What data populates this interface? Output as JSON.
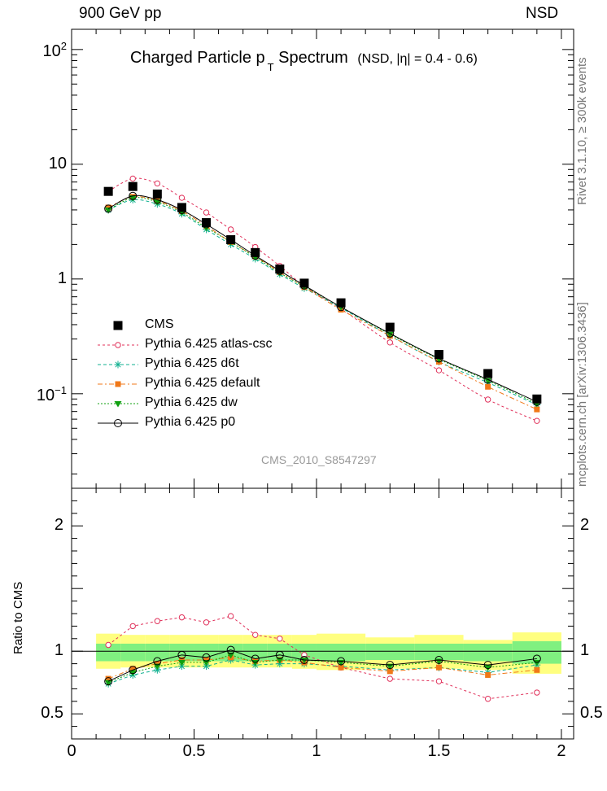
{
  "header": {
    "left": "900 GeV pp",
    "right": "NSD"
  },
  "title": {
    "main": "Charged Particle p",
    "sub": "T",
    "rest": " Spectrum",
    "cond": "(NSD, |η| = 0.4 - 0.6)"
  },
  "side_labels": {
    "rivet": "Rivet 3.1.10, ≥ 300k events",
    "mcplots": "mcplots.cern.ch [arXiv:1306.3436]"
  },
  "watermark": "CMS_2010_S8547297",
  "ratio_ylabel": "Ratio to CMS",
  "colors": {
    "cms": "#000000",
    "atlas_csc": "#e0305a",
    "d6t": "#10b090",
    "default": "#f07818",
    "dw": "#10a010",
    "p0": "#000000",
    "band_outer": "#ffff80",
    "band_inner": "#80f080"
  },
  "chart_data": [
    {
      "type": "scatter",
      "panel": "main",
      "yscale": "log",
      "xlim": [
        0,
        2.05
      ],
      "ylim": [
        0.015,
        150
      ],
      "grid": false,
      "legend_position": "bottom-left",
      "y_ticks": [
        {
          "value": 0.1,
          "base": "10",
          "exp": "−1"
        },
        {
          "value": 1,
          "base": "1",
          "exp": ""
        },
        {
          "value": 10,
          "base": "10",
          "exp": ""
        },
        {
          "value": 100,
          "base": "10",
          "exp": "2"
        }
      ],
      "x": [
        0.15,
        0.25,
        0.35,
        0.45,
        0.55,
        0.65,
        0.75,
        0.85,
        0.95,
        1.1,
        1.3,
        1.5,
        1.7,
        1.9
      ],
      "series": [
        {
          "name": "CMS",
          "style": "data",
          "values": [
            5.8,
            6.4,
            5.5,
            4.2,
            3.1,
            2.2,
            1.7,
            1.22,
            0.92,
            0.62,
            0.38,
            0.22,
            0.15,
            0.09
          ]
        },
        {
          "name": "Pythia 6.425 atlas-csc",
          "style": "atlas_csc",
          "values": [
            5.8,
            7.5,
            6.8,
            5.1,
            3.8,
            2.7,
            1.9,
            1.3,
            0.87,
            0.55,
            0.28,
            0.16,
            0.089,
            0.058
          ]
        },
        {
          "name": "Pythia 6.425 d6t",
          "style": "d6t",
          "values": [
            4.0,
            4.9,
            4.5,
            3.7,
            2.7,
            2.0,
            1.5,
            1.1,
            0.83,
            0.56,
            0.32,
            0.19,
            0.125,
            0.08
          ]
        },
        {
          "name": "Pythia 6.425 default",
          "style": "default",
          "values": [
            4.2,
            5.2,
            4.8,
            3.9,
            2.9,
            2.1,
            1.57,
            1.15,
            0.85,
            0.54,
            0.32,
            0.19,
            0.115,
            0.073
          ]
        },
        {
          "name": "Pythia 6.425 dw",
          "style": "dw",
          "values": [
            4.0,
            5.1,
            4.7,
            3.8,
            2.8,
            2.1,
            1.55,
            1.13,
            0.86,
            0.57,
            0.33,
            0.2,
            0.13,
            0.082
          ]
        },
        {
          "name": "Pythia 6.425 p0",
          "style": "p0",
          "values": [
            4.1,
            5.3,
            4.9,
            4.0,
            3.0,
            2.2,
            1.6,
            1.18,
            0.88,
            0.57,
            0.335,
            0.203,
            0.133,
            0.085
          ]
        }
      ]
    },
    {
      "type": "scatter",
      "panel": "ratio",
      "yscale": "linear",
      "xlim": [
        0,
        2.05
      ],
      "ylim": [
        0.3,
        2.3
      ],
      "grid": false,
      "xlabel": "",
      "ylabel": "Ratio to CMS",
      "x_ticks": [
        {
          "value": 0,
          "label": "0"
        },
        {
          "value": 0.5,
          "label": "0.5"
        },
        {
          "value": 1,
          "label": "1"
        },
        {
          "value": 1.5,
          "label": "1.5"
        },
        {
          "value": 2,
          "label": "2"
        }
      ],
      "y_ticks": [
        {
          "value": 0.5,
          "label": "0.5"
        },
        {
          "value": 1,
          "label": "1"
        },
        {
          "value": 2,
          "label": "2"
        }
      ],
      "bins": [
        [
          0.1,
          0.2
        ],
        [
          0.2,
          0.3
        ],
        [
          0.3,
          0.4
        ],
        [
          0.4,
          0.5
        ],
        [
          0.5,
          0.6
        ],
        [
          0.6,
          0.7
        ],
        [
          0.7,
          0.8
        ],
        [
          0.8,
          0.9
        ],
        [
          0.9,
          1.0
        ],
        [
          1.0,
          1.2
        ],
        [
          1.2,
          1.4
        ],
        [
          1.4,
          1.6
        ],
        [
          1.6,
          1.8
        ],
        [
          1.8,
          2.0
        ]
      ],
      "band_outer": [
        [
          0.86,
          1.14
        ],
        [
          0.87,
          1.13
        ],
        [
          0.87,
          1.13
        ],
        [
          0.87,
          1.13
        ],
        [
          0.87,
          1.13
        ],
        [
          0.87,
          1.13
        ],
        [
          0.87,
          1.13
        ],
        [
          0.87,
          1.13
        ],
        [
          0.86,
          1.13
        ],
        [
          0.85,
          1.14
        ],
        [
          0.86,
          1.11
        ],
        [
          0.86,
          1.13
        ],
        [
          0.85,
          1.09
        ],
        [
          0.82,
          1.15
        ]
      ],
      "band_inner": [
        [
          0.92,
          1.06
        ],
        [
          0.92,
          1.06
        ],
        [
          0.92,
          1.06
        ],
        [
          0.92,
          1.06
        ],
        [
          0.92,
          1.06
        ],
        [
          0.92,
          1.06
        ],
        [
          0.92,
          1.06
        ],
        [
          0.92,
          1.06
        ],
        [
          0.92,
          1.06
        ],
        [
          0.92,
          1.06
        ],
        [
          0.93,
          1.06
        ],
        [
          0.93,
          1.06
        ],
        [
          0.92,
          1.06
        ],
        [
          0.9,
          1.08
        ]
      ],
      "x": [
        0.15,
        0.25,
        0.35,
        0.45,
        0.55,
        0.65,
        0.75,
        0.85,
        0.95,
        1.1,
        1.3,
        1.5,
        1.7,
        1.9
      ],
      "series": [
        {
          "name": "Pythia 6.425 atlas-csc",
          "style": "atlas_csc",
          "values": [
            1.05,
            1.2,
            1.24,
            1.27,
            1.23,
            1.28,
            1.13,
            1.1,
            0.97,
            0.87,
            0.78,
            0.76,
            0.62,
            0.67
          ]
        },
        {
          "name": "Pythia 6.425 d6t",
          "style": "d6t",
          "values": [
            0.74,
            0.81,
            0.85,
            0.88,
            0.88,
            0.93,
            0.89,
            0.9,
            0.9,
            0.88,
            0.85,
            0.87,
            0.83,
            0.89
          ]
        },
        {
          "name": "Pythia 6.425 default",
          "style": "default",
          "values": [
            0.78,
            0.86,
            0.9,
            0.93,
            0.93,
            0.95,
            0.92,
            0.93,
            0.91,
            0.87,
            0.84,
            0.87,
            0.81,
            0.85
          ]
        },
        {
          "name": "Pythia 6.425 dw",
          "style": "dw",
          "values": [
            0.75,
            0.83,
            0.88,
            0.91,
            0.91,
            0.97,
            0.91,
            0.93,
            0.93,
            0.91,
            0.88,
            0.92,
            0.87,
            0.91
          ]
        },
        {
          "name": "Pythia 6.425 p0",
          "style": "p0",
          "values": [
            0.76,
            0.85,
            0.92,
            0.97,
            0.95,
            1.01,
            0.94,
            0.97,
            0.93,
            0.92,
            0.89,
            0.93,
            0.89,
            0.94
          ]
        }
      ]
    }
  ]
}
